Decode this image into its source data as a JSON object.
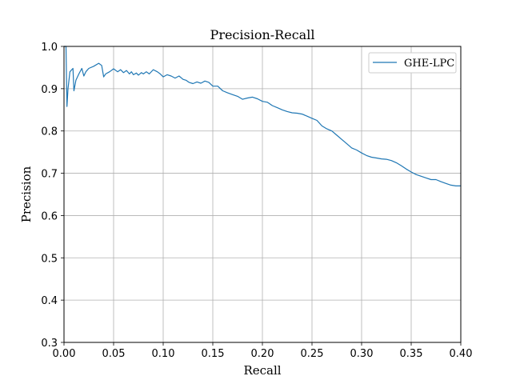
{
  "chart_data": {
    "type": "line",
    "title": "Precision-Recall",
    "xlabel": "Recall",
    "ylabel": "Precision",
    "xlim": [
      0.0,
      0.4
    ],
    "ylim": [
      0.3,
      1.0
    ],
    "xticks": [
      "0.00",
      "0.05",
      "0.10",
      "0.15",
      "0.20",
      "0.25",
      "0.30",
      "0.35",
      "0.40"
    ],
    "yticks": [
      "0.3",
      "0.4",
      "0.5",
      "0.6",
      "0.7",
      "0.8",
      "0.9",
      "1.0"
    ],
    "grid": true,
    "legend_position": "top-right",
    "series": [
      {
        "name": "GHE-LPC",
        "color": "#1f77b4",
        "x": [
          0.0,
          0.002,
          0.003,
          0.004,
          0.006,
          0.009,
          0.01,
          0.012,
          0.015,
          0.018,
          0.02,
          0.022,
          0.025,
          0.03,
          0.035,
          0.038,
          0.04,
          0.042,
          0.046,
          0.05,
          0.054,
          0.057,
          0.06,
          0.063,
          0.066,
          0.068,
          0.07,
          0.073,
          0.075,
          0.078,
          0.08,
          0.083,
          0.086,
          0.09,
          0.094,
          0.097,
          0.1,
          0.104,
          0.108,
          0.112,
          0.116,
          0.12,
          0.123,
          0.126,
          0.13,
          0.134,
          0.138,
          0.142,
          0.146,
          0.15,
          0.155,
          0.16,
          0.165,
          0.17,
          0.175,
          0.18,
          0.185,
          0.19,
          0.195,
          0.2,
          0.205,
          0.21,
          0.215,
          0.22,
          0.225,
          0.23,
          0.235,
          0.24,
          0.245,
          0.25,
          0.255,
          0.26,
          0.265,
          0.27,
          0.275,
          0.28,
          0.285,
          0.29,
          0.295,
          0.3,
          0.305,
          0.31,
          0.315,
          0.32,
          0.325,
          0.33,
          0.335,
          0.34,
          0.345,
          0.35,
          0.355,
          0.36,
          0.365,
          0.37,
          0.375,
          0.38,
          0.385,
          0.39,
          0.395,
          0.4
        ],
        "y": [
          1.0,
          1.0,
          0.858,
          0.9,
          0.94,
          0.948,
          0.895,
          0.92,
          0.935,
          0.948,
          0.93,
          0.94,
          0.948,
          0.953,
          0.96,
          0.955,
          0.928,
          0.935,
          0.94,
          0.947,
          0.94,
          0.945,
          0.938,
          0.943,
          0.935,
          0.94,
          0.933,
          0.937,
          0.932,
          0.938,
          0.935,
          0.94,
          0.935,
          0.945,
          0.94,
          0.935,
          0.928,
          0.933,
          0.93,
          0.925,
          0.93,
          0.922,
          0.92,
          0.915,
          0.912,
          0.916,
          0.913,
          0.918,
          0.915,
          0.906,
          0.906,
          0.895,
          0.89,
          0.886,
          0.882,
          0.875,
          0.878,
          0.88,
          0.876,
          0.87,
          0.868,
          0.86,
          0.855,
          0.85,
          0.846,
          0.843,
          0.842,
          0.84,
          0.835,
          0.83,
          0.825,
          0.812,
          0.805,
          0.8,
          0.79,
          0.78,
          0.77,
          0.76,
          0.755,
          0.748,
          0.742,
          0.738,
          0.736,
          0.734,
          0.733,
          0.73,
          0.725,
          0.718,
          0.71,
          0.703,
          0.697,
          0.693,
          0.689,
          0.685,
          0.685,
          0.68,
          0.676,
          0.672,
          0.67,
          0.67
        ]
      }
    ]
  }
}
